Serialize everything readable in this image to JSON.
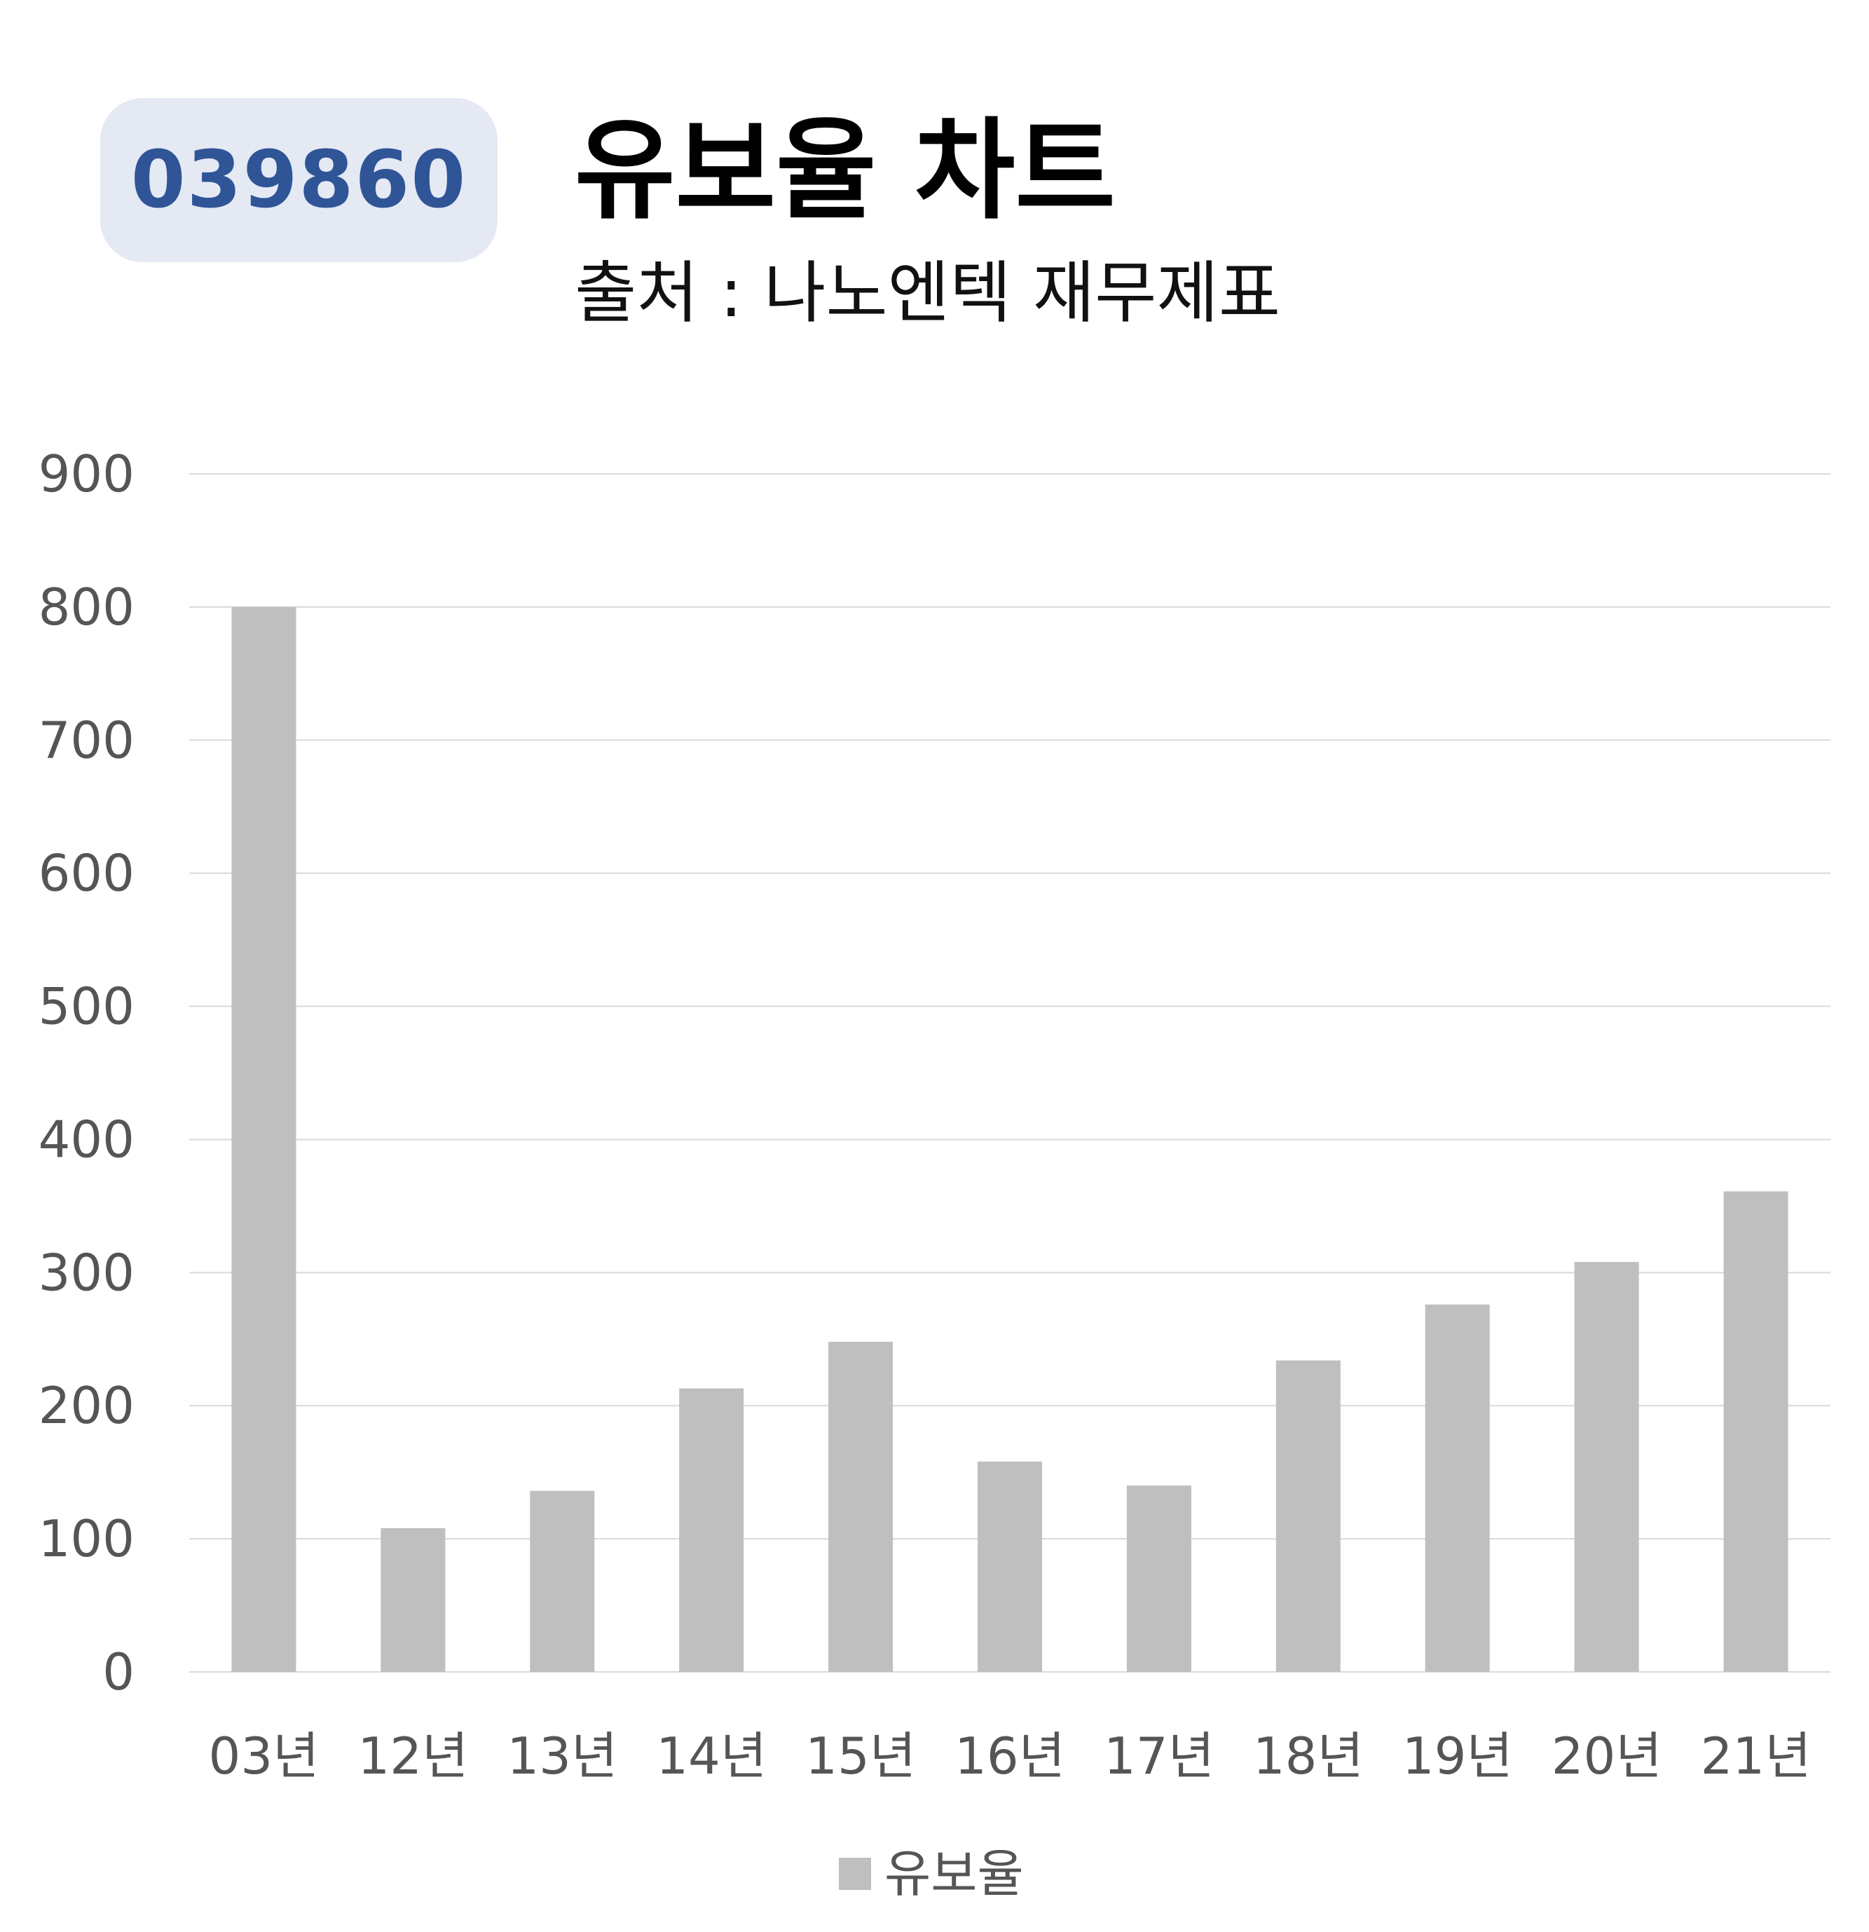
{
  "badge": {
    "code": "039860"
  },
  "header": {
    "title": "유보율 차트",
    "subtitle": "출처 : 나노엔텍 재무제표"
  },
  "colors": {
    "bar": "#bfbfbf",
    "grid": "#d9d9d9",
    "badge_bg": "#e4e9f4",
    "badge_text": "#2f5597",
    "tick_text": "#555555"
  },
  "chart_data": {
    "type": "bar",
    "title": "유보율 차트",
    "subtitle": "출처 : 나노엔텍 재무제표",
    "xlabel": "",
    "ylabel": "",
    "categories": [
      "03년",
      "12년",
      "13년",
      "14년",
      "15년",
      "16년",
      "17년",
      "18년",
      "19년",
      "20년",
      "21년"
    ],
    "series": [
      {
        "name": "유보율",
        "values": [
          800,
          108,
          136,
          213,
          248,
          158,
          140,
          234,
          276,
          308,
          361
        ]
      }
    ],
    "ylim": [
      0,
      900
    ],
    "yticks": [
      0,
      100,
      200,
      300,
      400,
      500,
      600,
      700,
      800,
      900
    ],
    "grid": true,
    "legend_position": "bottom"
  }
}
